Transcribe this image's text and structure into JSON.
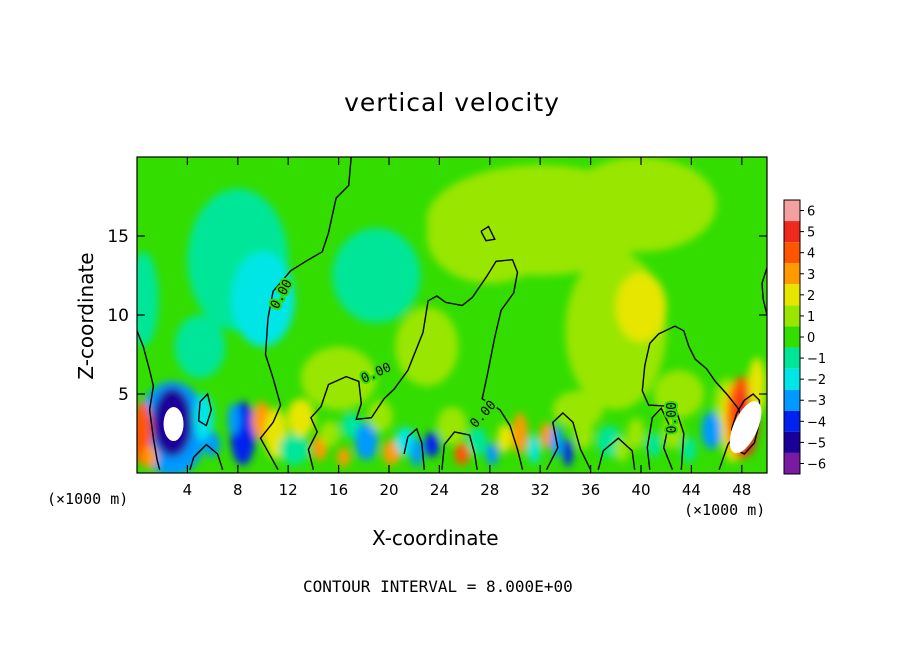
{
  "chart_data": {
    "type": "heatmap",
    "title": "vertical velocity",
    "xlabel": "X-coordinate",
    "ylabel": "Z-coordinate",
    "x_unit_label": "(×1000 m)",
    "x_ticks": [
      4,
      8,
      12,
      16,
      20,
      24,
      28,
      32,
      36,
      40,
      44,
      48
    ],
    "y_ticks": [
      5,
      10,
      15
    ],
    "xlim": [
      0,
      50
    ],
    "ylim": [
      0,
      20
    ],
    "colorbar": {
      "ticks": [
        6,
        5,
        4,
        3,
        2,
        1,
        0,
        -1,
        -2,
        -3,
        -4,
        -5,
        -6
      ],
      "levels": [
        {
          "from": 5.5,
          "to": 6.5,
          "color": "#f4a0a0"
        },
        {
          "from": 4.5,
          "to": 5.5,
          "color": "#ee2a1e"
        },
        {
          "from": 3.5,
          "to": 4.5,
          "color": "#ff5500"
        },
        {
          "from": 2.5,
          "to": 3.5,
          "color": "#ff9a00"
        },
        {
          "from": 1.5,
          "to": 2.5,
          "color": "#e6e600"
        },
        {
          "from": 0.5,
          "to": 1.5,
          "color": "#99e600"
        },
        {
          "from": -0.5,
          "to": 0.5,
          "color": "#33dd00"
        },
        {
          "from": -1.5,
          "to": -0.5,
          "color": "#00e699"
        },
        {
          "from": -2.5,
          "to": -1.5,
          "color": "#00e6e6"
        },
        {
          "from": -3.5,
          "to": -2.5,
          "color": "#0099ff"
        },
        {
          "from": -4.5,
          "to": -3.5,
          "color": "#0022ee"
        },
        {
          "from": -5.5,
          "to": -4.5,
          "color": "#1a0099"
        },
        {
          "from": -6.5,
          "to": -5.5,
          "color": "#7a1aa3"
        }
      ]
    },
    "contour_labels": [
      {
        "text": "0.00",
        "x": 11.5,
        "z": 11.3
      },
      {
        "text": "0.00",
        "x": 19.0,
        "z": 6.3
      },
      {
        "text": "0.00",
        "x": 27.5,
        "z": 3.7
      },
      {
        "text": "0.00",
        "x": 42.5,
        "z": 3.5
      }
    ],
    "contour_interval_text": "CONTOUR INTERVAL = 8.000E+00"
  }
}
